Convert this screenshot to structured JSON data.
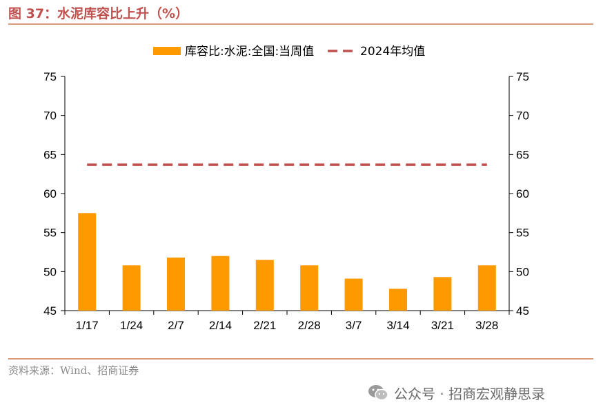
{
  "figure": {
    "title": "图 37：水泥库容比上升（%）",
    "source": "资料来源：Wind、招商证券",
    "watermark": "公众号 · 招商宏观静思录"
  },
  "chart_data": {
    "type": "bar",
    "categories": [
      "1/17",
      "1/24",
      "2/7",
      "2/14",
      "2/21",
      "2/28",
      "3/7",
      "3/14",
      "3/21",
      "3/28"
    ],
    "series": [
      {
        "name": "库容比:水泥:全国:当周值",
        "type": "bar",
        "color": "#ff9900",
        "values": [
          57.5,
          50.8,
          51.8,
          52.0,
          51.5,
          50.8,
          49.1,
          47.8,
          49.3,
          50.8
        ]
      },
      {
        "name": "2024年均值",
        "type": "line",
        "style": "dashed",
        "color": "#c0504d",
        "values": [
          63.7,
          63.7,
          63.7,
          63.7,
          63.7,
          63.7,
          63.7,
          63.7,
          63.7,
          63.7
        ]
      }
    ],
    "ylim": [
      45,
      75
    ],
    "yticks": [
      "45",
      "50",
      "55",
      "60",
      "65",
      "70",
      "75"
    ],
    "y2lim": [
      45,
      75
    ],
    "y2ticks": [
      "45",
      "50",
      "55",
      "60",
      "65",
      "70",
      "75"
    ],
    "legend_position": "top-center",
    "grid": false
  }
}
